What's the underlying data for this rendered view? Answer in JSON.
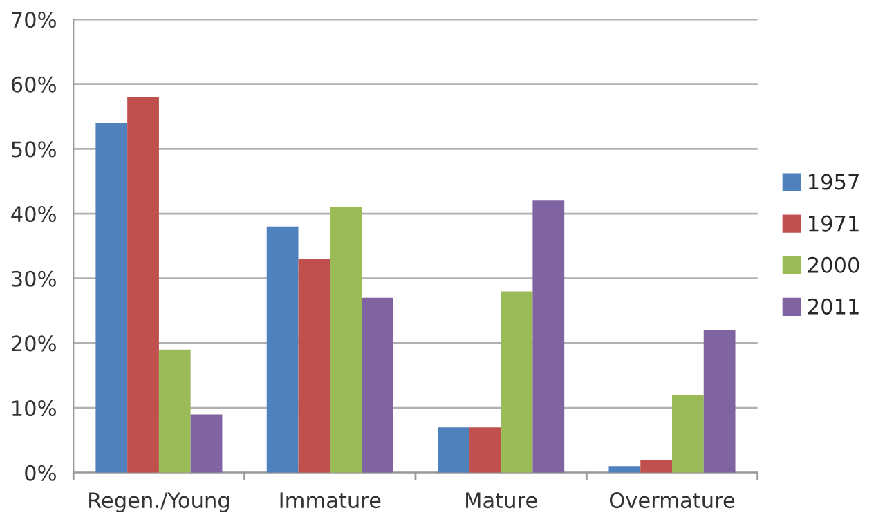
{
  "chart_data": {
    "type": "bar",
    "categories": [
      "Regen./Young",
      "Immature",
      "Mature",
      "Overmature"
    ],
    "series": [
      {
        "name": "1957",
        "color": "#4f81bd",
        "values": [
          54,
          38,
          7,
          1
        ]
      },
      {
        "name": "1971",
        "color": "#c0504d",
        "values": [
          58,
          33,
          7,
          2
        ]
      },
      {
        "name": "2000",
        "color": "#9bbb59",
        "values": [
          19,
          41,
          28,
          12
        ]
      },
      {
        "name": "2011",
        "color": "#8064a2",
        "values": [
          9,
          27,
          42,
          22
        ]
      }
    ],
    "ylim": [
      0,
      70
    ],
    "yticks": [
      {
        "value": 0,
        "label": "0%"
      },
      {
        "value": 10,
        "label": "10%"
      },
      {
        "value": 20,
        "label": "20%"
      },
      {
        "value": 30,
        "label": "30%"
      },
      {
        "value": 40,
        "label": "40%"
      },
      {
        "value": 50,
        "label": "50%"
      },
      {
        "value": 60,
        "label": "60%"
      },
      {
        "value": 70,
        "label": "70%"
      }
    ],
    "grid": "y",
    "legend": "right"
  }
}
